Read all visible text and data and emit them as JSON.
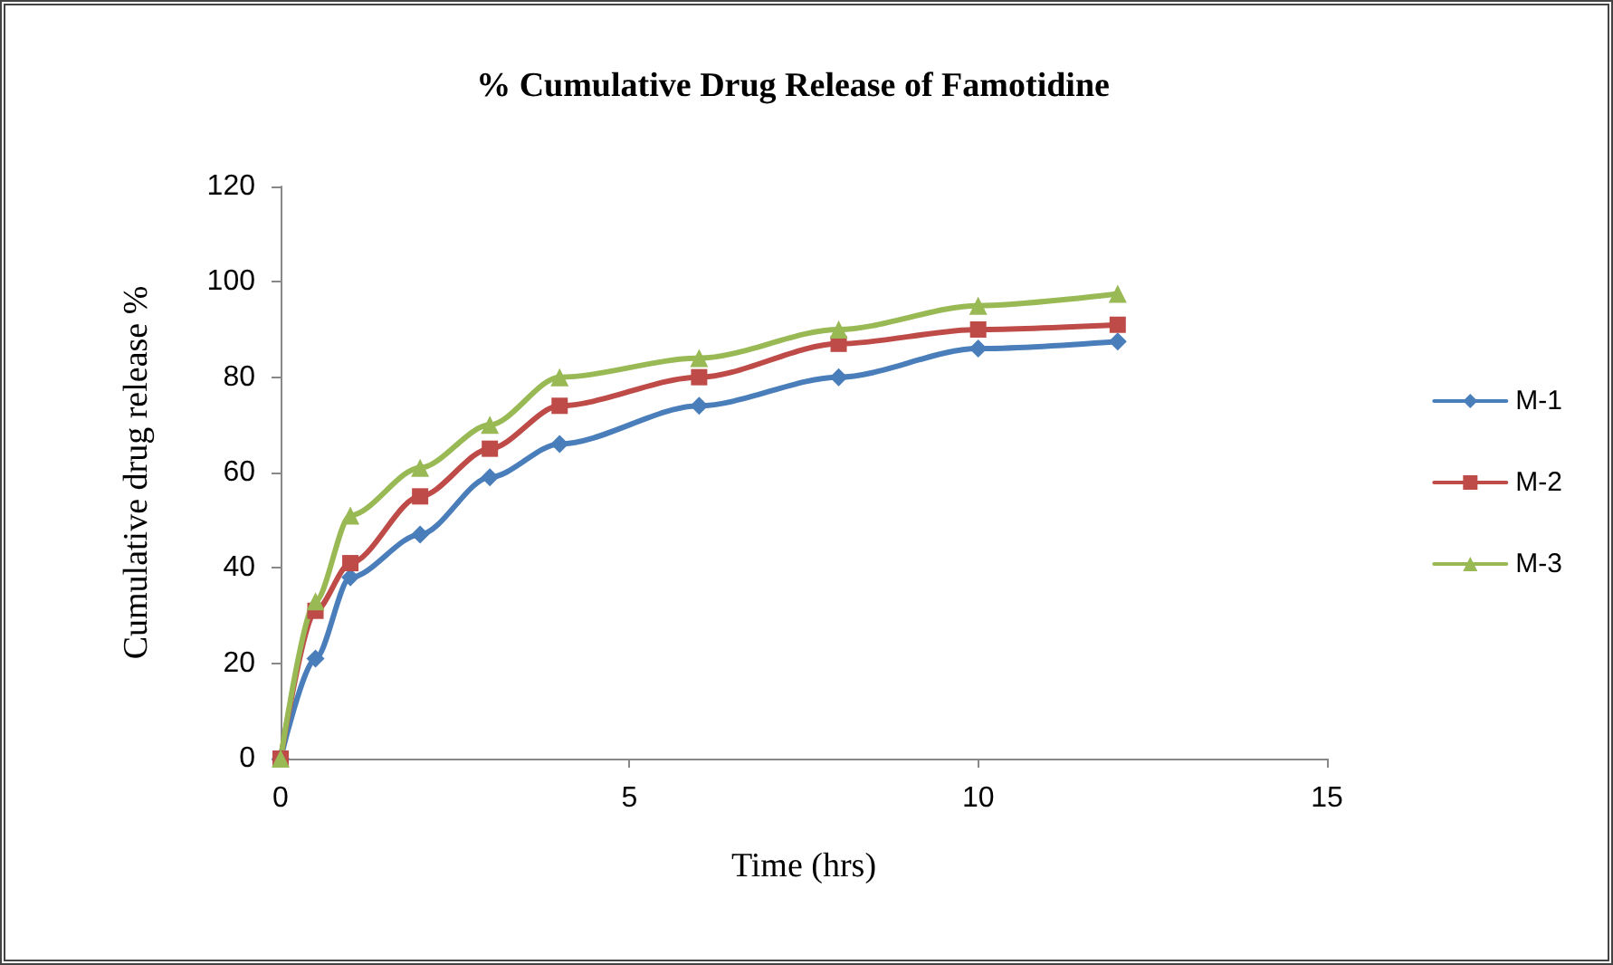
{
  "chart_data": {
    "type": "line",
    "title": "% Cumulative Drug Release of Famotidine",
    "xlabel": "Time (hrs)",
    "ylabel": "Cumulative drug release %",
    "x": [
      0,
      0.5,
      1,
      2,
      3,
      4,
      6,
      8,
      10,
      12
    ],
    "series": [
      {
        "name": "M-1",
        "color": "#4a7ebb",
        "marker": "diamond",
        "values": [
          0,
          21,
          38,
          47,
          59,
          66,
          74,
          80,
          86,
          87.5
        ]
      },
      {
        "name": "M-2",
        "color": "#be4b48",
        "marker": "square",
        "values": [
          0,
          31,
          41,
          55,
          65,
          74,
          80,
          87,
          90,
          91
        ]
      },
      {
        "name": "M-3",
        "color": "#98b954",
        "marker": "triangle",
        "values": [
          0,
          33,
          51,
          61,
          70,
          80,
          84,
          90,
          95,
          97.5
        ]
      }
    ],
    "xlim": [
      0,
      15
    ],
    "xticks": [
      0,
      5,
      10,
      15
    ],
    "ylim": [
      0,
      120
    ],
    "yticks": [
      0,
      20,
      40,
      60,
      80,
      100,
      120
    ],
    "grid": false,
    "legend": "right",
    "line_style": "solid"
  }
}
